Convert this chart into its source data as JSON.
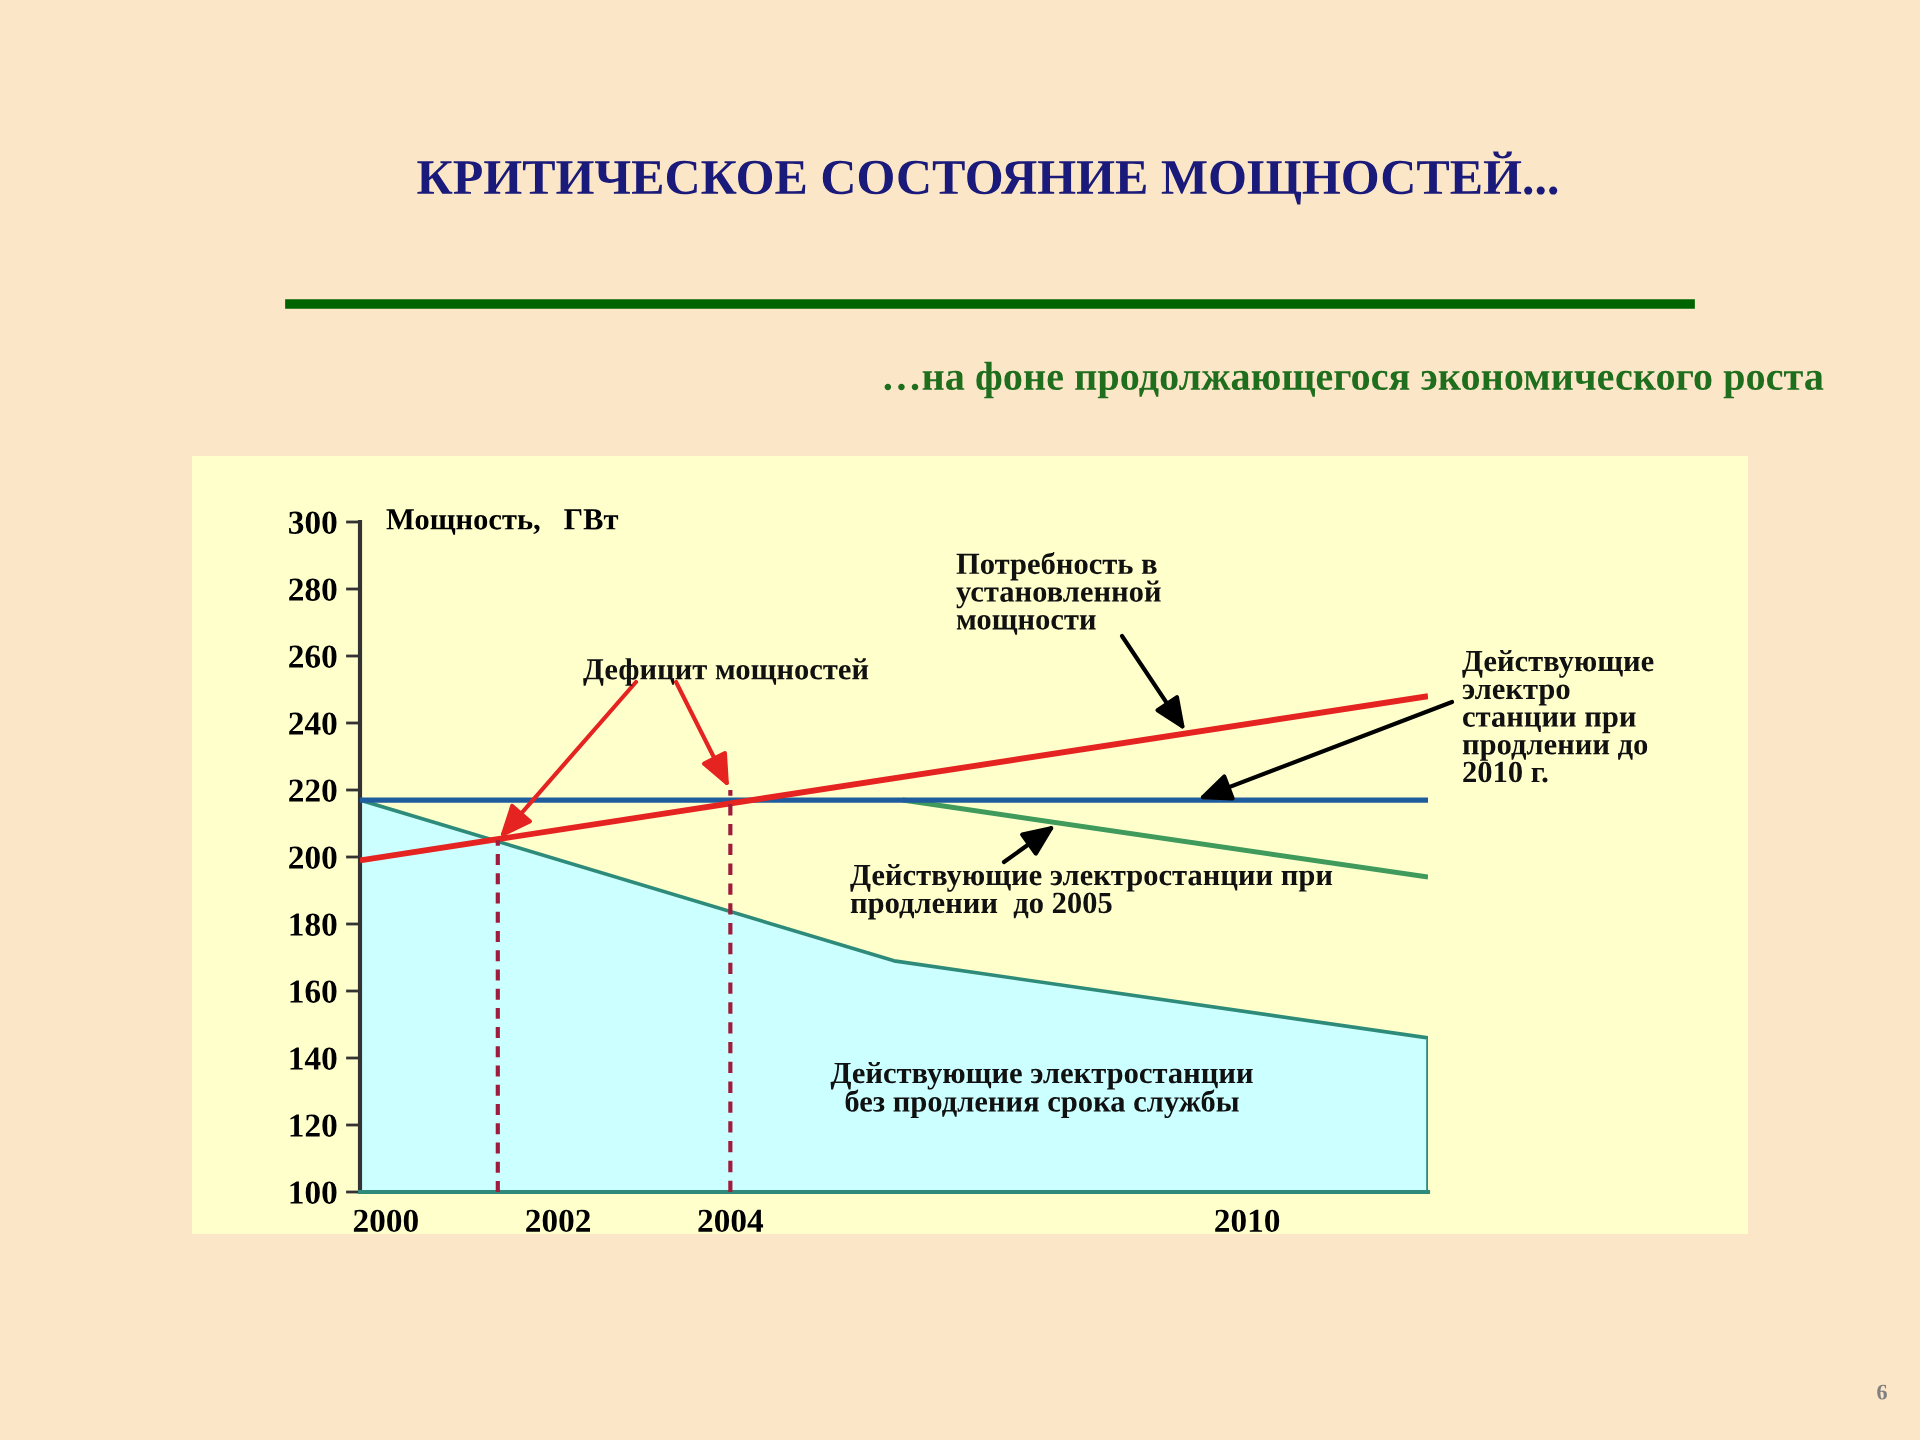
{
  "chart_data": {
    "type": "line",
    "title": "КРИТИЧЕСКОЕ СОСТОЯНИЕ МОЩНОСТЕЙ...",
    "subtitle": "…на фоне продолжающегося экономического роста",
    "ylabel": "Мощность,   ГВт",
    "xlim": [
      1999.7,
      2012.1
    ],
    "xticks": [
      2000,
      2002,
      2004,
      2010
    ],
    "ylim": [
      100,
      300
    ],
    "yticks": [
      100,
      120,
      140,
      160,
      180,
      200,
      220,
      240,
      260,
      280,
      300
    ],
    "series": [
      {
        "type": "area",
        "color": "#ccffff",
        "x": [
          1999.7,
          2005.9,
          2012.1
        ],
        "values": [
          217,
          169,
          146
        ]
      },
      {
        "color": "#3f9a5c",
        "x": [
          2006.0,
          2012.1
        ],
        "values": [
          217,
          194
        ]
      },
      {
        "color": "#1f5c9e",
        "x": [
          1999.7,
          2012.1
        ],
        "values": [
          217,
          217
        ]
      },
      {
        "color": "#e52421",
        "x": [
          1999.7,
          2012.1
        ],
        "values": [
          199,
          248
        ]
      },
      {
        "color": "#a01c3c",
        "line_style": "dashed",
        "x": [
          2001.3,
          2001.3
        ],
        "values": [
          100,
          205
        ]
      },
      {
        "color": "#a01c3c",
        "line_style": "dashed",
        "x": [
          2004,
          2004
        ],
        "values": [
          100,
          220
        ]
      }
    ],
    "annotations": [
      {
        "text": "Дефицит мощностей",
        "x": 2001.3,
        "y": 205
      },
      {
        "text": "Потребность в\nустановленной\nмощности",
        "x": 2009.3,
        "y": 237
      },
      {
        "text": "Действующие\nэлектро\nстанции при\nпродлении до\n2010 г.",
        "x": 2009.4,
        "y": 217
      },
      {
        "text": "Действующие электростанции при\nпродлении  до 2005",
        "x": 2007.8,
        "y": 210
      },
      "Действующие электростанции\nбез продления срока службы",
      "6"
    ]
  }
}
